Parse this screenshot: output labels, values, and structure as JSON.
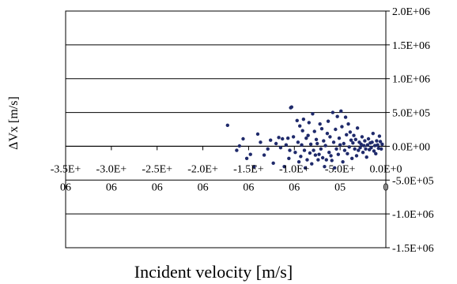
{
  "chart_data": {
    "type": "scatter",
    "title": "",
    "xlabel": "Incident velocity [m/s]",
    "ylabel": "ΔVx [m/s]",
    "xlim": [
      -3500000,
      0
    ],
    "ylim": [
      -1500000,
      2000000
    ],
    "grid": true,
    "grid_axis": "y",
    "legend": "none",
    "marker_color": "#1f2a6b",
    "x_tick_values": [
      -3500000,
      -3000000,
      -2500000,
      -2000000,
      -1500000,
      -1000000,
      -500000,
      0
    ],
    "x_tick_labels": [
      [
        "-3.5E+",
        "06"
      ],
      [
        "-3.0E+",
        "06"
      ],
      [
        "-2.5E+",
        "06"
      ],
      [
        "-2.0E+",
        "06"
      ],
      [
        "-1.5E+",
        "06"
      ],
      [
        "-1.0E+",
        "06"
      ],
      [
        "-5.0E+",
        "05"
      ],
      [
        "0.0E+0",
        "0"
      ]
    ],
    "y_tick_values": [
      2000000,
      1500000,
      1000000,
      500000,
      0,
      -500000,
      -1000000,
      -1500000
    ],
    "y_tick_labels": [
      "2.0E+06",
      "1.5E+06",
      "1.0E+06",
      "5.0E+05",
      "0.0E+00",
      "-5.0E+05",
      "-1.0E+06",
      "-1.5E+06"
    ],
    "series": [
      {
        "x": [
          -1730000,
          -1630000,
          -1600000,
          -1560000,
          -1520000,
          -1480000,
          -1440000,
          -1400000,
          -1370000,
          -1330000,
          -1290000,
          -1260000,
          -1230000,
          -1200000,
          -1170000,
          -1150000,
          -1130000,
          -1110000,
          -1090000,
          -1070000,
          -1060000,
          -1050000,
          -1040000,
          -1030000,
          -1010000,
          -990000,
          -970000,
          -960000,
          -950000,
          -940000,
          -930000,
          -920000,
          -910000,
          -900000,
          -890000,
          -880000,
          -870000,
          -860000,
          -850000,
          -840000,
          -830000,
          -820000,
          -810000,
          -800000,
          -790000,
          -780000,
          -770000,
          -760000,
          -750000,
          -740000,
          -730000,
          -720000,
          -710000,
          -700000,
          -690000,
          -680000,
          -670000,
          -660000,
          -650000,
          -640000,
          -630000,
          -620000,
          -610000,
          -600000,
          -590000,
          -580000,
          -570000,
          -560000,
          -550000,
          -540000,
          -530000,
          -520000,
          -510000,
          -500000,
          -490000,
          -480000,
          -470000,
          -460000,
          -450000,
          -440000,
          -430000,
          -420000,
          -410000,
          -400000,
          -390000,
          -380000,
          -370000,
          -360000,
          -350000,
          -340000,
          -330000,
          -320000,
          -310000,
          -300000,
          -290000,
          -280000,
          -270000,
          -260000,
          -250000,
          -240000,
          -230000,
          -220000,
          -210000,
          -200000,
          -190000,
          -180000,
          -170000,
          -160000,
          -150000,
          -140000,
          -130000,
          -120000,
          -110000,
          -100000,
          -90000,
          -80000,
          -70000,
          -60000,
          -50000,
          -40000
        ],
        "y": [
          310000,
          -60000,
          5000,
          110000,
          -180000,
          -120000,
          -300000,
          180000,
          60000,
          -130000,
          -40000,
          90000,
          -250000,
          40000,
          130000,
          -20000,
          110000,
          -300000,
          20000,
          120000,
          -180000,
          -60000,
          570000,
          580000,
          140000,
          -90000,
          380000,
          60000,
          -230000,
          300000,
          -150000,
          20000,
          230000,
          400000,
          -60000,
          -320000,
          120000,
          -200000,
          160000,
          350000,
          -100000,
          30000,
          -260000,
          480000,
          -60000,
          220000,
          -130000,
          100000,
          40000,
          -200000,
          -120000,
          330000,
          -40000,
          260000,
          -170000,
          80000,
          -300000,
          10000,
          -200000,
          190000,
          370000,
          -90000,
          140000,
          -140000,
          -210000,
          500000,
          60000,
          -320000,
          250000,
          -40000,
          440000,
          -120000,
          120000,
          20000,
          520000,
          290000,
          -230000,
          40000,
          -60000,
          430000,
          170000,
          -110000,
          330000,
          -10000,
          210000,
          90000,
          -180000,
          50000,
          160000,
          -40000,
          100000,
          -140000,
          270000,
          -60000,
          60000,
          -20000,
          30000,
          140000,
          -90000,
          10000,
          80000,
          -40000,
          -160000,
          20000,
          110000,
          -50000,
          50000,
          -20000,
          60000,
          190000,
          -70000,
          10000,
          -110000,
          80000,
          20000,
          -30000,
          150000,
          70000,
          -40000,
          30000
        ]
      }
    ]
  }
}
